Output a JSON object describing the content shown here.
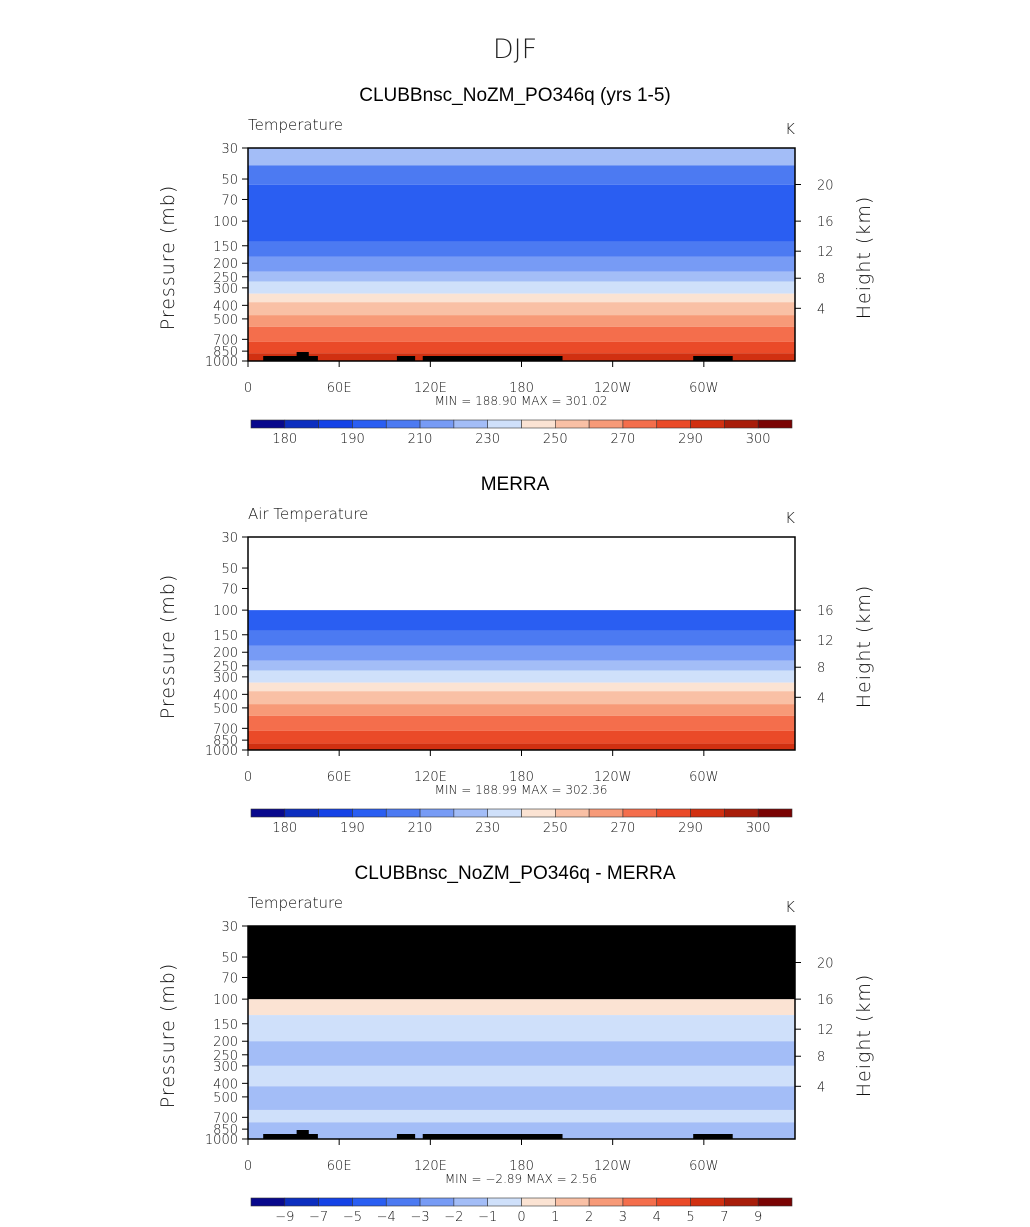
{
  "figure": {
    "season": "DJF"
  },
  "chart_data": [
    {
      "type": "heatmap",
      "title": "CLUBBnsc_NoZM_PO346q (yrs 1-5)",
      "variable": "Temperature",
      "units": "K",
      "ylabel": "Pressure (mb)",
      "ylabel_right": "Height (km)",
      "x_ticks": [
        "0",
        "60E",
        "120E",
        "180",
        "120W",
        "60W"
      ],
      "y_ticks": [
        "30",
        "50",
        "70",
        "100",
        "150",
        "200",
        "250",
        "300",
        "400",
        "500",
        "700",
        "850",
        "1000"
      ],
      "height_ticks": [
        "20",
        "16",
        "12",
        "8",
        "4"
      ],
      "stats": {
        "min": "188.90",
        "max": "301.02",
        "min_label": "MIN =",
        "max_label": "MAX ="
      },
      "colorbar_labels": [
        "180",
        "190",
        "210",
        "230",
        "250",
        "270",
        "290",
        "300"
      ],
      "colors": [
        "#08088c",
        "#0c2ebf",
        "#1442e6",
        "#2a5ef2",
        "#4c7af2",
        "#779bf5",
        "#a3bdf7",
        "#cfe0fa",
        "#fbe3d3",
        "#f9c0a5",
        "#f79a78",
        "#f46e4c",
        "#ea4a28",
        "#d13011",
        "#a81d0a",
        "#7a0303"
      ],
      "bands": [
        {
          "top": "30",
          "color_index": 6
        },
        {
          "top": "40",
          "color_index": 4
        },
        {
          "top": "55",
          "color_index": 3
        },
        {
          "top": "140",
          "color_index": 4
        },
        {
          "top": "180",
          "color_index": 5
        },
        {
          "top": "230",
          "color_index": 6
        },
        {
          "top": "270",
          "color_index": 7
        },
        {
          "top": "330",
          "color_index": 8
        },
        {
          "top": "380",
          "color_index": 9
        },
        {
          "top": "470",
          "color_index": 10
        },
        {
          "top": "570",
          "color_index": 11
        },
        {
          "top": "730",
          "color_index": 12
        },
        {
          "top": "880",
          "color_index": 13
        }
      ],
      "undefined_top": null,
      "terrain": true
    },
    {
      "type": "heatmap",
      "title": "MERRA",
      "variable": "Air Temperature",
      "units": "K",
      "ylabel": "Pressure (mb)",
      "ylabel_right": "Height (km)",
      "x_ticks": [
        "0",
        "60E",
        "120E",
        "180",
        "120W",
        "60W"
      ],
      "y_ticks": [
        "30",
        "50",
        "70",
        "100",
        "150",
        "200",
        "250",
        "300",
        "400",
        "500",
        "700",
        "850",
        "1000"
      ],
      "height_ticks": [
        "16",
        "12",
        "8",
        "4"
      ],
      "stats": {
        "min": "188.99",
        "max": "302.36",
        "min_label": "MIN =",
        "max_label": "MAX ="
      },
      "colorbar_labels": [
        "180",
        "190",
        "210",
        "230",
        "250",
        "270",
        "290",
        "300"
      ],
      "colors": [
        "#08088c",
        "#0c2ebf",
        "#1442e6",
        "#2a5ef2",
        "#4c7af2",
        "#779bf5",
        "#a3bdf7",
        "#cfe0fa",
        "#fbe3d3",
        "#f9c0a5",
        "#f79a78",
        "#f46e4c",
        "#ea4a28",
        "#d13011",
        "#a81d0a",
        "#7a0303"
      ],
      "bands": [
        {
          "top": "100",
          "color_index": 3
        },
        {
          "top": "140",
          "color_index": 4
        },
        {
          "top": "180",
          "color_index": 5
        },
        {
          "top": "230",
          "color_index": 6
        },
        {
          "top": "270",
          "color_index": 7
        },
        {
          "top": "330",
          "color_index": 8
        },
        {
          "top": "380",
          "color_index": 9
        },
        {
          "top": "470",
          "color_index": 10
        },
        {
          "top": "570",
          "color_index": 11
        },
        {
          "top": "730",
          "color_index": 12
        },
        {
          "top": "900",
          "color_index": 13
        }
      ],
      "undefined_top": "100",
      "terrain": false
    },
    {
      "type": "heatmap",
      "title": "CLUBBnsc_NoZM_PO346q - MERRA",
      "variable": "Temperature",
      "units": "K",
      "ylabel": "Pressure (mb)",
      "ylabel_right": "Height (km)",
      "x_ticks": [
        "0",
        "60E",
        "120E",
        "180",
        "120W",
        "60W"
      ],
      "y_ticks": [
        "30",
        "50",
        "70",
        "100",
        "150",
        "200",
        "250",
        "300",
        "400",
        "500",
        "700",
        "850",
        "1000"
      ],
      "height_ticks": [
        "20",
        "16",
        "12",
        "8",
        "4"
      ],
      "stats": {
        "min": "−2.89",
        "max": "2.56",
        "min_label": "MIN =",
        "max_label": "MAX ="
      },
      "colorbar_labels": [
        "−9",
        "−7",
        "−5",
        "−4",
        "−3",
        "−2",
        "−1",
        "0",
        "1",
        "2",
        "3",
        "4",
        "5",
        "7",
        "9"
      ],
      "colors": [
        "#08088c",
        "#0c2ebf",
        "#1442e6",
        "#2a5ef2",
        "#4c7af2",
        "#779bf5",
        "#a3bdf7",
        "#cfe0fa",
        "#fbe3d3",
        "#f9c0a5",
        "#f79a78",
        "#f46e4c",
        "#ea4a28",
        "#d13011",
        "#a81d0a",
        "#7a0303"
      ],
      "bands": [
        {
          "top": "100",
          "color_index": 8
        },
        {
          "top": "130",
          "color_index": 7
        },
        {
          "top": "200",
          "color_index": 6
        },
        {
          "top": "300",
          "color_index": 7
        },
        {
          "top": "420",
          "color_index": 6
        },
        {
          "top": "620",
          "color_index": 7
        },
        {
          "top": "760",
          "color_index": 6
        }
      ],
      "undefined_top": "30",
      "undefined_bottom": "100",
      "terrain": true
    }
  ]
}
